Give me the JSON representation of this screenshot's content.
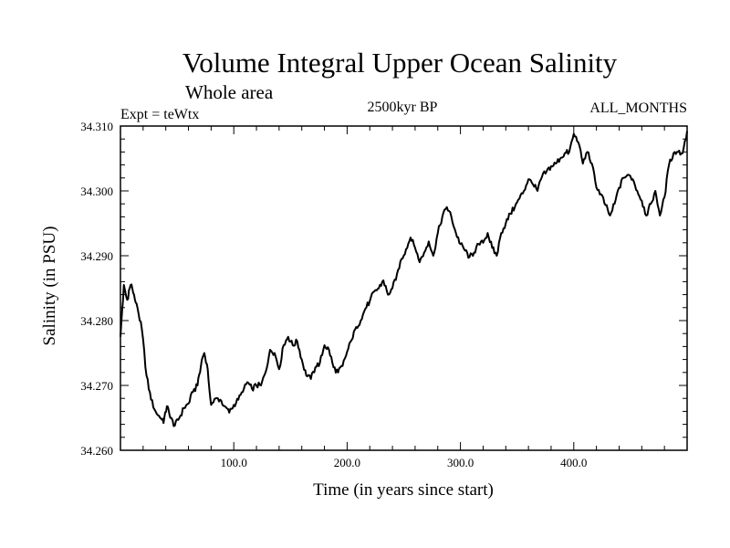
{
  "chart_data": {
    "type": "line",
    "title": "Volume Integral Upper Ocean Salinity",
    "subtitle": "Whole area",
    "left_label": "Expt = teWtx",
    "center_label": "2500kyr BP",
    "right_label": "ALL_MONTHS",
    "xlabel": "Time (in years since start)",
    "ylabel": "Salinity (in PSU)",
    "xlim": [
      0,
      500
    ],
    "ylim": [
      34.26,
      34.31
    ],
    "x_ticks": [
      100,
      200,
      300,
      400
    ],
    "x_tick_labels": [
      "100.0",
      "200.0",
      "300.0",
      "400.0"
    ],
    "y_ticks": [
      34.26,
      34.27,
      34.28,
      34.29,
      34.3,
      34.31
    ],
    "y_tick_labels": [
      "34.260",
      "34.270",
      "34.280",
      "34.290",
      "34.300",
      "34.310"
    ],
    "grid": false,
    "series": [
      {
        "name": "salinity",
        "color": "#000000",
        "points": [
          [
            0,
            34.2775
          ],
          [
            3,
            34.2855
          ],
          [
            6,
            34.2832
          ],
          [
            9,
            34.2855
          ],
          [
            12,
            34.284
          ],
          [
            15,
            34.282
          ],
          [
            19,
            34.2785
          ],
          [
            23,
            34.2715
          ],
          [
            27,
            34.2678
          ],
          [
            31,
            34.266
          ],
          [
            35,
            34.265
          ],
          [
            38,
            34.2642
          ],
          [
            41,
            34.2668
          ],
          [
            44,
            34.265
          ],
          [
            48,
            34.2638
          ],
          [
            52,
            34.265
          ],
          [
            56,
            34.2665
          ],
          [
            60,
            34.2672
          ],
          [
            64,
            34.269
          ],
          [
            68,
            34.27
          ],
          [
            71,
            34.273
          ],
          [
            74,
            34.275
          ],
          [
            77,
            34.2725
          ],
          [
            80,
            34.267
          ],
          [
            84,
            34.268
          ],
          [
            88,
            34.2678
          ],
          [
            92,
            34.2668
          ],
          [
            96,
            34.2658
          ],
          [
            100,
            34.267
          ],
          [
            104,
            34.2678
          ],
          [
            108,
            34.269
          ],
          [
            112,
            34.2705
          ],
          [
            116,
            34.2695
          ],
          [
            120,
            34.27
          ],
          [
            124,
            34.27
          ],
          [
            128,
            34.272
          ],
          [
            132,
            34.2755
          ],
          [
            136,
            34.275
          ],
          [
            140,
            34.2725
          ],
          [
            144,
            34.2762
          ],
          [
            148,
            34.2775
          ],
          [
            152,
            34.2762
          ],
          [
            156,
            34.2768
          ],
          [
            160,
            34.274
          ],
          [
            164,
            34.2715
          ],
          [
            168,
            34.271
          ],
          [
            172,
            34.2728
          ],
          [
            176,
            34.2735
          ],
          [
            180,
            34.2762
          ],
          [
            184,
            34.2755
          ],
          [
            188,
            34.2728
          ],
          [
            192,
            34.272
          ],
          [
            196,
            34.273
          ],
          [
            200,
            34.2752
          ],
          [
            204,
            34.277
          ],
          [
            208,
            34.279
          ],
          [
            212,
            34.28
          ],
          [
            216,
            34.2818
          ],
          [
            220,
            34.283
          ],
          [
            224,
            34.2845
          ],
          [
            228,
            34.285
          ],
          [
            232,
            34.2862
          ],
          [
            236,
            34.284
          ],
          [
            240,
            34.285
          ],
          [
            244,
            34.2872
          ],
          [
            248,
            34.2895
          ],
          [
            252,
            34.291
          ],
          [
            256,
            34.2928
          ],
          [
            260,
            34.2912
          ],
          [
            264,
            34.289
          ],
          [
            268,
            34.2905
          ],
          [
            272,
            34.2922
          ],
          [
            276,
            34.29
          ],
          [
            280,
            34.2935
          ],
          [
            284,
            34.296
          ],
          [
            288,
            34.2975
          ],
          [
            292,
            34.296
          ],
          [
            296,
            34.2935
          ],
          [
            300,
            34.2918
          ],
          [
            304,
            34.2908
          ],
          [
            308,
            34.2898
          ],
          [
            312,
            34.2905
          ],
          [
            316,
            34.2918
          ],
          [
            320,
            34.292
          ],
          [
            324,
            34.2935
          ],
          [
            328,
            34.2912
          ],
          [
            332,
            34.29
          ],
          [
            336,
            34.2935
          ],
          [
            340,
            34.295
          ],
          [
            344,
            34.2965
          ],
          [
            348,
            34.2975
          ],
          [
            352,
            34.2988
          ],
          [
            356,
            34.3
          ],
          [
            360,
            34.3018
          ],
          [
            364,
            34.301
          ],
          [
            368,
            34.3
          ],
          [
            372,
            34.3022
          ],
          [
            376,
            34.303
          ],
          [
            380,
            34.3038
          ],
          [
            384,
            34.3042
          ],
          [
            388,
            34.305
          ],
          [
            392,
            34.3058
          ],
          [
            396,
            34.306
          ],
          [
            400,
            34.3088
          ],
          [
            404,
            34.3075
          ],
          [
            408,
            34.3042
          ],
          [
            412,
            34.306
          ],
          [
            416,
            34.3042
          ],
          [
            420,
            34.3005
          ],
          [
            424,
            34.2995
          ],
          [
            428,
            34.2978
          ],
          [
            432,
            34.2962
          ],
          [
            436,
            34.298
          ],
          [
            440,
            34.3005
          ],
          [
            444,
            34.302
          ],
          [
            448,
            34.3025
          ],
          [
            452,
            34.3018
          ],
          [
            456,
            34.3
          ],
          [
            460,
            34.2985
          ],
          [
            464,
            34.2962
          ],
          [
            468,
            34.298
          ],
          [
            472,
            34.3
          ],
          [
            476,
            34.2962
          ],
          [
            480,
            34.299
          ],
          [
            484,
            34.304
          ],
          [
            488,
            34.3058
          ],
          [
            492,
            34.306
          ],
          [
            496,
            34.3058
          ],
          [
            500,
            34.3092
          ]
        ]
      }
    ]
  }
}
